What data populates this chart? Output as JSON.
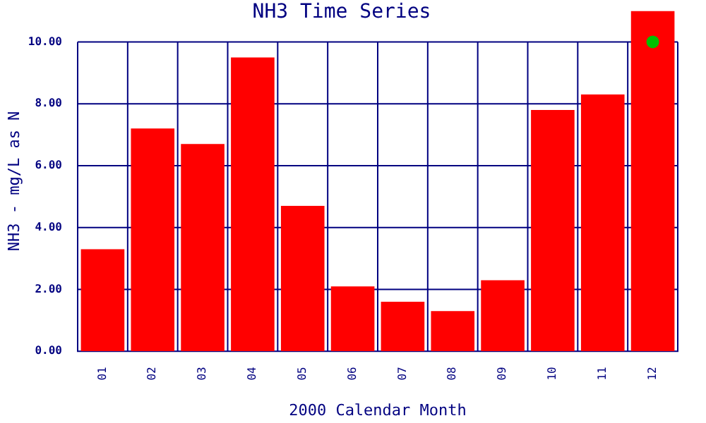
{
  "chart_data": {
    "type": "bar",
    "title": "NH3 Time Series",
    "xlabel": "2000 Calendar Month",
    "ylabel": "NH3 - mg/L as N",
    "categories": [
      "01",
      "02",
      "03",
      "04",
      "05",
      "06",
      "07",
      "08",
      "09",
      "10",
      "11",
      "12"
    ],
    "series": [
      {
        "color": "#ff0000",
        "values": [
          3.3,
          7.2,
          6.7,
          9.5,
          4.7,
          2.1,
          1.6,
          1.3,
          2.3,
          7.8,
          8.3,
          11
        ]
      },
      {
        "type": "scatter",
        "color": "#00c000",
        "x": [
          "12"
        ],
        "values": [
          10
        ]
      }
    ],
    "ylim": [
      0,
      11
    ],
    "yticks": [
      {
        "value": 0,
        "label": "0.00"
      },
      {
        "value": 2,
        "label": "2.00"
      },
      {
        "value": 4,
        "label": "4.00"
      },
      {
        "value": 6,
        "label": "6.00"
      },
      {
        "value": 8,
        "label": "8.00"
      },
      {
        "value": 10,
        "label": "10.00"
      }
    ],
    "grid": true,
    "marker": "circle"
  }
}
